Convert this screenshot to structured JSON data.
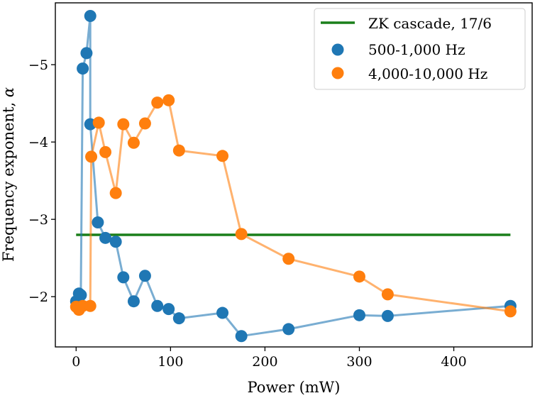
{
  "chart_data": {
    "type": "line",
    "title": "",
    "xlabel": "Power (mW)",
    "ylabel": "Frequency exponent, ",
    "ylabel_symbol": "α",
    "xlim": [
      -22,
      483
    ],
    "ylim": [
      -5.8,
      -1.35
    ],
    "y_inverted": true,
    "xticks": [
      0,
      100,
      200,
      300,
      400
    ],
    "xtick_labels": [
      "0",
      "100",
      "200",
      "300",
      "400"
    ],
    "yticks": [
      -5,
      -4,
      -3,
      -2
    ],
    "ytick_labels": [
      "−5",
      "−4",
      "−3",
      "−2"
    ],
    "grid": false,
    "legend_position": "top-right",
    "reference_line": {
      "name": "ZK cascade, 17/6",
      "color": "#1a7f1a",
      "x": [
        0,
        460
      ],
      "y": [
        -2.8,
        -2.8
      ]
    },
    "series": [
      {
        "name": "500-1,000 Hz",
        "color": "#1f77b4",
        "x": [
          0,
          3,
          5,
          7,
          11,
          15,
          15,
          23,
          31,
          42,
          50,
          61,
          73,
          86,
          98,
          109,
          155,
          175,
          225,
          300,
          330,
          460
        ],
        "y": [
          -1.94,
          -2.04,
          -2.02,
          -4.95,
          -5.15,
          -5.63,
          -4.23,
          -2.96,
          -2.76,
          -2.71,
          -2.25,
          -1.94,
          -2.27,
          -1.88,
          -1.84,
          -1.72,
          -1.79,
          -1.49,
          -1.58,
          -1.76,
          -1.75,
          -1.88
        ]
      },
      {
        "name": "4,000-10,000 Hz",
        "color": "#ff7f0e",
        "x": [
          0,
          3,
          7,
          15,
          16,
          24,
          31,
          42,
          50,
          61,
          73,
          86,
          98,
          109,
          155,
          175,
          225,
          300,
          330,
          460
        ],
        "y": [
          -1.87,
          -1.83,
          -1.88,
          -1.88,
          -3.81,
          -4.25,
          -3.87,
          -3.34,
          -4.23,
          -3.99,
          -4.24,
          -4.51,
          -4.54,
          -3.89,
          -3.82,
          -2.81,
          -2.49,
          -2.26,
          -2.03,
          -1.81
        ]
      }
    ]
  }
}
